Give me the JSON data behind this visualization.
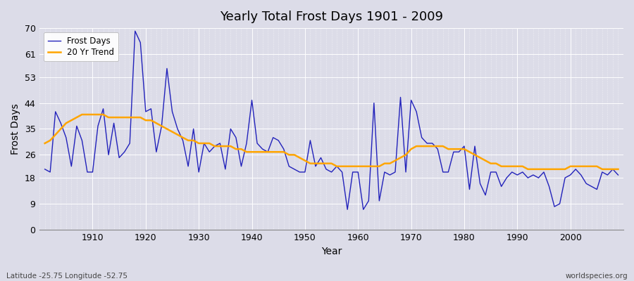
{
  "title": "Yearly Total Frost Days 1901 - 2009",
  "xlabel": "Year",
  "ylabel": "Frost Days",
  "footnote_left": "Latitude -25.75 Longitude -52.75",
  "footnote_right": "worldspecies.org",
  "bg_color": "#dcdce8",
  "plot_bg_color": "#dcdce8",
  "grid_color": "#ffffff",
  "line_color": "#2222bb",
  "trend_color": "#ffa500",
  "ylim": [
    0,
    70
  ],
  "yticks": [
    0,
    9,
    18,
    26,
    35,
    44,
    53,
    61,
    70
  ],
  "years": [
    1901,
    1902,
    1903,
    1904,
    1905,
    1906,
    1907,
    1908,
    1909,
    1910,
    1911,
    1912,
    1913,
    1914,
    1915,
    1916,
    1917,
    1918,
    1919,
    1920,
    1921,
    1922,
    1923,
    1924,
    1925,
    1926,
    1927,
    1928,
    1929,
    1930,
    1931,
    1932,
    1933,
    1934,
    1935,
    1936,
    1937,
    1938,
    1939,
    1940,
    1941,
    1942,
    1943,
    1944,
    1945,
    1946,
    1947,
    1948,
    1949,
    1950,
    1951,
    1952,
    1953,
    1954,
    1955,
    1956,
    1957,
    1958,
    1959,
    1960,
    1961,
    1962,
    1963,
    1964,
    1965,
    1966,
    1967,
    1968,
    1969,
    1970,
    1971,
    1972,
    1973,
    1974,
    1975,
    1976,
    1977,
    1978,
    1979,
    1980,
    1981,
    1982,
    1983,
    1984,
    1985,
    1986,
    1987,
    1988,
    1989,
    1990,
    1991,
    1992,
    1993,
    1994,
    1995,
    1996,
    1997,
    1998,
    1999,
    2000,
    2001,
    2002,
    2003,
    2004,
    2005,
    2006,
    2007,
    2008,
    2009
  ],
  "frost_days": [
    21,
    20,
    41,
    37,
    32,
    22,
    36,
    31,
    20,
    20,
    36,
    42,
    26,
    37,
    25,
    27,
    30,
    69,
    65,
    41,
    42,
    27,
    36,
    56,
    41,
    35,
    31,
    22,
    35,
    20,
    30,
    27,
    29,
    30,
    21,
    35,
    32,
    22,
    30,
    45,
    30,
    28,
    27,
    32,
    31,
    28,
    22,
    21,
    20,
    20,
    31,
    22,
    25,
    21,
    20,
    22,
    20,
    7,
    20,
    20,
    7,
    10,
    44,
    10,
    20,
    19,
    20,
    46,
    20,
    45,
    41,
    32,
    30,
    30,
    28,
    20,
    20,
    27,
    27,
    29,
    14,
    29,
    16,
    12,
    20,
    20,
    15,
    18,
    20,
    19,
    20,
    18,
    19,
    18,
    20,
    15,
    8,
    9,
    18,
    19,
    21,
    19,
    16,
    15,
    14,
    20,
    19,
    21,
    19
  ],
  "trend_values": [
    30,
    31,
    33,
    35,
    37,
    38,
    39,
    40,
    40,
    40,
    40,
    40,
    39,
    39,
    39,
    39,
    39,
    39,
    39,
    38,
    38,
    37,
    36,
    35,
    34,
    33,
    32,
    31,
    31,
    30,
    30,
    30,
    29,
    29,
    29,
    29,
    28,
    28,
    27,
    27,
    27,
    27,
    27,
    27,
    27,
    27,
    26,
    26,
    25,
    24,
    23,
    23,
    23,
    23,
    23,
    22,
    22,
    22,
    22,
    22,
    22,
    22,
    22,
    22,
    23,
    23,
    24,
    25,
    26,
    28,
    29,
    29,
    29,
    29,
    29,
    29,
    28,
    28,
    28,
    28,
    27,
    26,
    25,
    24,
    23,
    23,
    22,
    22,
    22,
    22,
    22,
    21,
    21,
    21,
    21,
    21,
    21,
    21,
    21,
    22,
    22,
    22,
    22,
    22,
    22,
    21,
    21,
    21,
    21
  ],
  "xticks": [
    1910,
    1920,
    1930,
    1940,
    1950,
    1960,
    1970,
    1980,
    1990,
    2000
  ]
}
